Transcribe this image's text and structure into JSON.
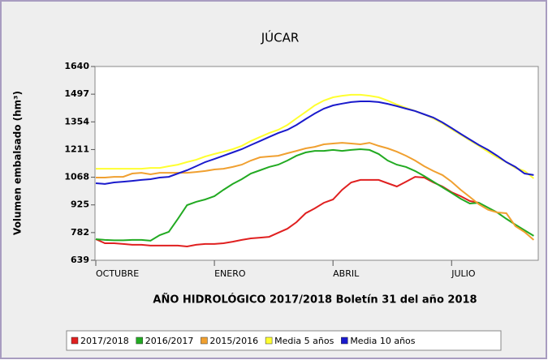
{
  "chart_data": {
    "type": "line",
    "title": "JÚCAR",
    "y_label": "Volumen embalsado (hm³)",
    "x_label": "AÑO HIDROLÓGICO 2017/2018 Boletín 31 del año 2018",
    "x": [
      0,
      1,
      2,
      3,
      4,
      5,
      6,
      7,
      8,
      9,
      10,
      11,
      12,
      13,
      14,
      15,
      16,
      17,
      18,
      19,
      20,
      21,
      22,
      23,
      24,
      25,
      26,
      27,
      28,
      29,
      30,
      31,
      32,
      33,
      34,
      35,
      36,
      37,
      38,
      39,
      40,
      41,
      42,
      43,
      44,
      45,
      46,
      47,
      48
    ],
    "xlim": [
      0,
      48.5
    ],
    "xticks": [
      {
        "value": 0,
        "label": "OCTUBRE"
      },
      {
        "value": 13,
        "label": "ENERO"
      },
      {
        "value": 26,
        "label": "ABRIL"
      },
      {
        "value": 39,
        "label": "JULIO"
      }
    ],
    "ylim": [
      639,
      1640
    ],
    "yticks": [
      639,
      782,
      925,
      1068,
      1211,
      1354,
      1497,
      1640
    ],
    "series": [
      {
        "name": "2017/2018",
        "color": "#e02020",
        "values": [
          748,
          727,
          727,
          723,
          719,
          719,
          715,
          715,
          715,
          715,
          710,
          719,
          723,
          723,
          727,
          735,
          744,
          752,
          756,
          760,
          781,
          802,
          836,
          882,
          907,
          936,
          953,
          1003,
          1041,
          1054,
          1054,
          1054,
          1037,
          1020,
          1045,
          1070,
          1066,
          1041,
          1020,
          991,
          970,
          945,
          936,
          null,
          null,
          null,
          null,
          null,
          null
        ]
      },
      {
        "name": "2016/2017",
        "color": "#22aa22",
        "values": [
          748,
          744,
          742,
          742,
          744,
          744,
          740,
          769,
          786,
          853,
          924,
          941,
          953,
          970,
          1003,
          1033,
          1058,
          1087,
          1104,
          1121,
          1133,
          1154,
          1179,
          1196,
          1204,
          1204,
          1209,
          1204,
          1209,
          1213,
          1209,
          1188,
          1154,
          1133,
          1121,
          1100,
          1074,
          1045,
          1016,
          987,
          957,
          932,
          936,
          911,
          886,
          853,
          823,
          794,
          765
        ]
      },
      {
        "name": "2015/2016",
        "color": "#f0a030",
        "values": [
          1066,
          1066,
          1070,
          1070,
          1087,
          1091,
          1083,
          1091,
          1091,
          1091,
          1091,
          1095,
          1100,
          1108,
          1112,
          1121,
          1133,
          1154,
          1171,
          1175,
          1179,
          1192,
          1204,
          1217,
          1225,
          1238,
          1242,
          1246,
          1242,
          1238,
          1246,
          1230,
          1217,
          1200,
          1179,
          1154,
          1125,
          1100,
          1079,
          1045,
          1003,
          966,
          928,
          900,
          886,
          882,
          815,
          785,
          744
        ]
      },
      {
        "name": "Media 5 años",
        "color": "#ffff30",
        "values": [
          1112,
          1112,
          1112,
          1112,
          1112,
          1112,
          1116,
          1116,
          1125,
          1133,
          1146,
          1158,
          1175,
          1188,
          1200,
          1213,
          1230,
          1255,
          1276,
          1296,
          1313,
          1338,
          1372,
          1405,
          1439,
          1464,
          1481,
          1489,
          1494,
          1494,
          1489,
          1481,
          1464,
          1443,
          1426,
          1410,
          1393,
          1372,
          1347,
          1317,
          1288,
          1259,
          1230,
          1200,
          1171,
          1146,
          1116,
          1100,
          1062
        ]
      },
      {
        "name": "Media 10 años",
        "color": "#1a1acc",
        "values": [
          1037,
          1033,
          1041,
          1045,
          1049,
          1054,
          1058,
          1066,
          1070,
          1087,
          1104,
          1125,
          1146,
          1162,
          1179,
          1196,
          1213,
          1234,
          1255,
          1276,
          1296,
          1313,
          1338,
          1368,
          1397,
          1422,
          1439,
          1448,
          1456,
          1460,
          1460,
          1456,
          1447,
          1435,
          1422,
          1410,
          1393,
          1376,
          1351,
          1322,
          1292,
          1263,
          1234,
          1209,
          1179,
          1146,
          1121,
          1087,
          1079
        ]
      }
    ]
  }
}
